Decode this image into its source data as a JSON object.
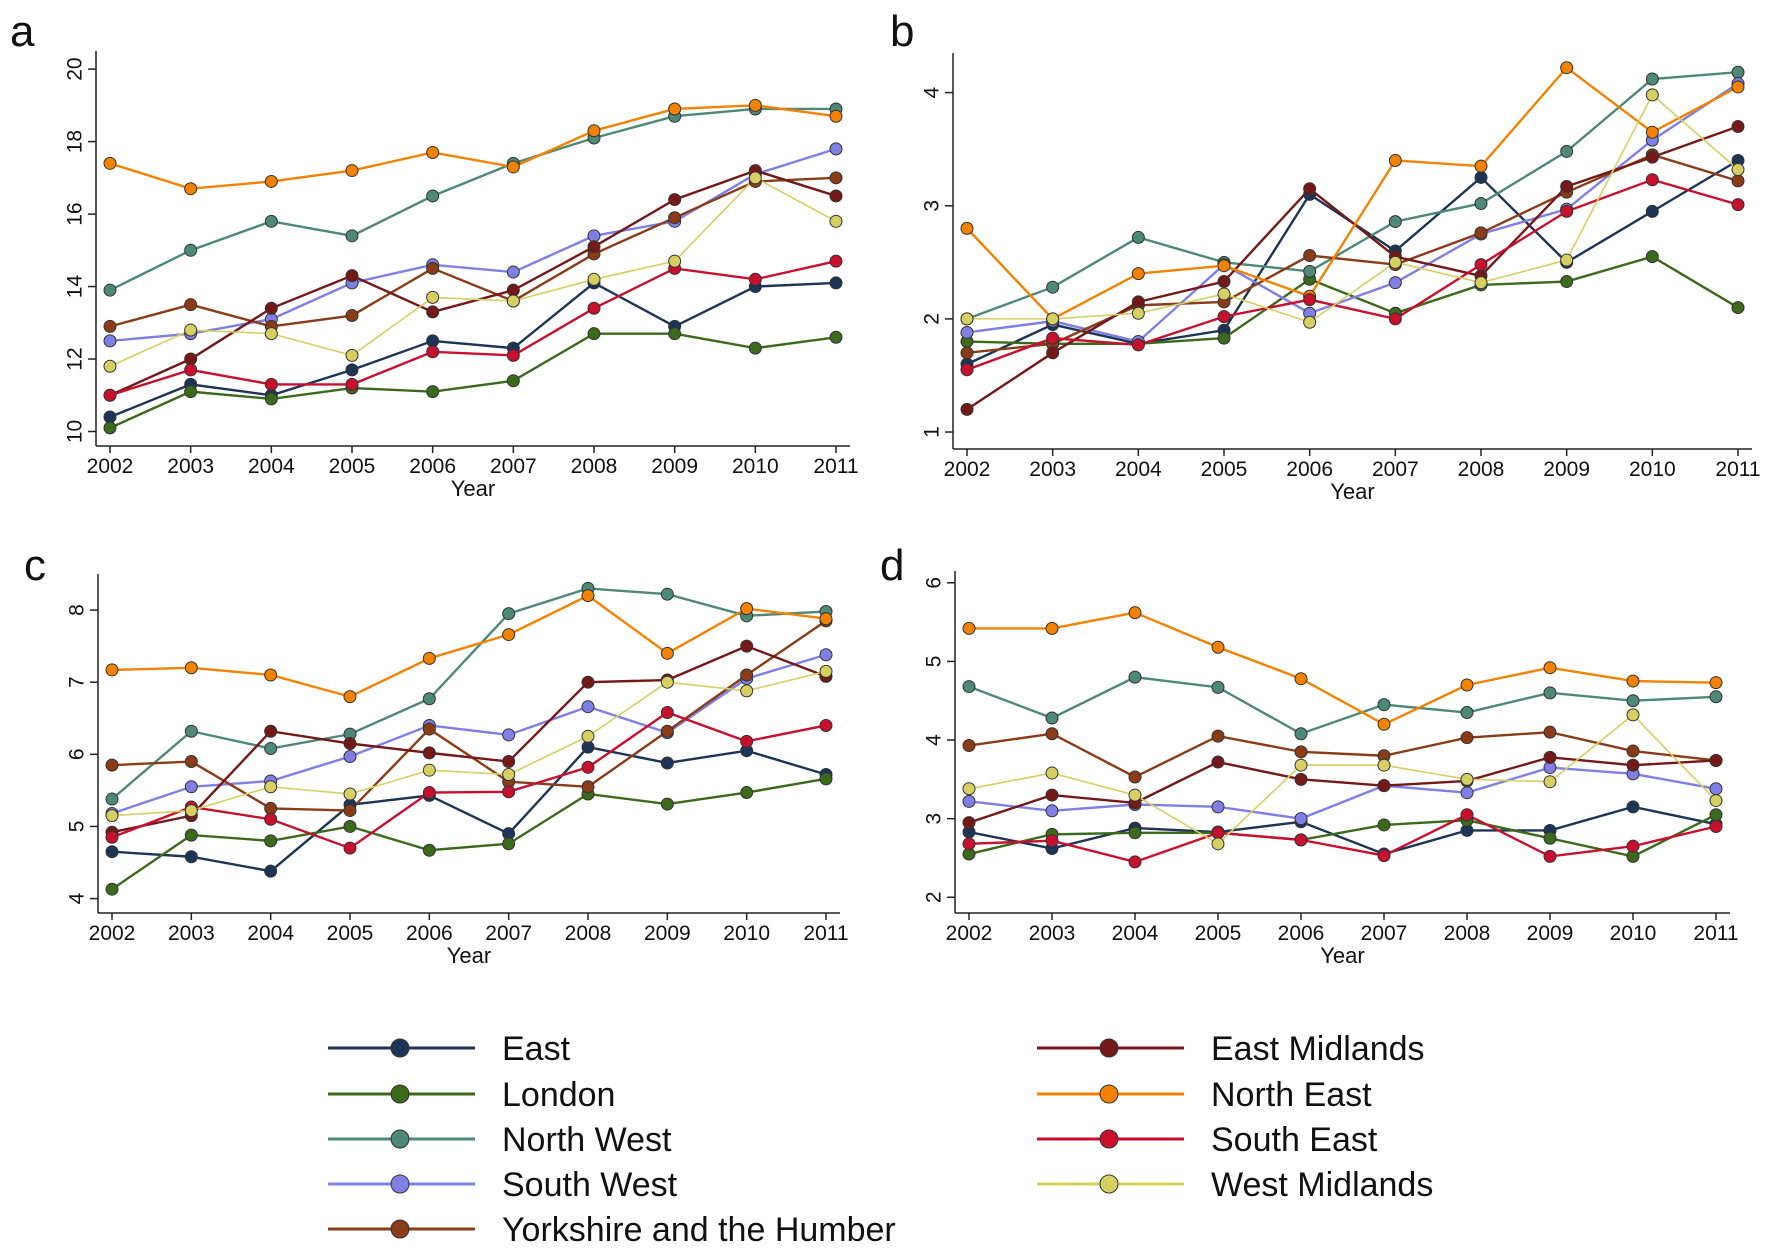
{
  "legend": {
    "series": [
      {
        "name": "East",
        "color": "#1c3557"
      },
      {
        "name": "London",
        "color": "#3c6a1c"
      },
      {
        "name": "North West",
        "color": "#4e8877"
      },
      {
        "name": "South West",
        "color": "#7f7fe6"
      },
      {
        "name": "Yorkshire and the Humber",
        "color": "#8a3c18"
      },
      {
        "name": "East Midlands",
        "color": "#741818"
      },
      {
        "name": "North East",
        "color": "#f28200"
      },
      {
        "name": "South East",
        "color": "#c8102e"
      },
      {
        "name": "West Midlands",
        "color": "#d6cf62"
      }
    ]
  },
  "chart_data": [
    {
      "type": "line",
      "label": "a",
      "xlabel": "Year",
      "categories": [
        "2002",
        "2003",
        "2004",
        "2005",
        "2006",
        "2007",
        "2008",
        "2009",
        "2010",
        "2011"
      ],
      "ylim": [
        9.6,
        20.5
      ],
      "yticks": [
        10,
        12,
        14,
        16,
        18,
        20
      ],
      "series": [
        {
          "values": [
            10.4,
            11.3,
            11.0,
            11.7,
            12.5,
            12.3,
            14.1,
            12.9,
            14.0,
            14.1
          ]
        },
        {
          "values": [
            10.1,
            11.1,
            10.9,
            11.2,
            11.1,
            11.4,
            12.7,
            12.7,
            12.3,
            12.6
          ]
        },
        {
          "values": [
            13.9,
            15.0,
            15.8,
            15.4,
            16.5,
            17.4,
            18.1,
            18.7,
            18.9,
            18.9
          ]
        },
        {
          "values": [
            12.5,
            12.7,
            13.1,
            14.1,
            14.6,
            14.4,
            15.4,
            15.8,
            17.1,
            17.8
          ]
        },
        {
          "values": [
            12.9,
            13.5,
            12.9,
            13.2,
            14.5,
            13.6,
            14.9,
            15.9,
            16.9,
            17.0
          ]
        },
        {
          "values": [
            11.0,
            12.0,
            13.4,
            14.3,
            13.3,
            13.9,
            15.1,
            16.4,
            17.2,
            16.5
          ]
        },
        {
          "values": [
            17.4,
            16.7,
            16.9,
            17.2,
            17.7,
            17.3,
            18.3,
            18.9,
            19.0,
            18.7
          ]
        },
        {
          "values": [
            11.0,
            11.7,
            11.3,
            11.3,
            12.2,
            12.1,
            13.4,
            14.5,
            14.2,
            14.7
          ]
        },
        {
          "values": [
            11.8,
            12.8,
            12.7,
            12.1,
            13.7,
            13.6,
            14.2,
            14.7,
            17.0,
            15.8
          ]
        }
      ]
    },
    {
      "type": "line",
      "label": "b",
      "xlabel": "Year",
      "categories": [
        "2002",
        "2003",
        "2004",
        "2005",
        "2006",
        "2007",
        "2008",
        "2009",
        "2010",
        "2011"
      ],
      "ylim": [
        0.85,
        4.35
      ],
      "yticks": [
        1,
        2,
        3,
        4
      ],
      "series": [
        {
          "values": [
            1.6,
            1.95,
            1.78,
            1.9,
            3.1,
            2.6,
            3.25,
            2.5,
            2.95,
            3.4
          ]
        },
        {
          "values": [
            1.8,
            1.78,
            1.78,
            1.83,
            2.35,
            2.05,
            2.3,
            2.33,
            2.55,
            2.1
          ]
        },
        {
          "values": [
            2.0,
            2.28,
            2.72,
            2.5,
            2.42,
            2.86,
            3.02,
            3.48,
            4.12,
            4.18
          ]
        },
        {
          "values": [
            1.88,
            1.98,
            1.8,
            2.48,
            2.05,
            2.32,
            2.75,
            2.97,
            3.58,
            4.08
          ]
        },
        {
          "values": [
            1.7,
            1.78,
            2.12,
            2.15,
            2.56,
            2.48,
            2.76,
            3.12,
            3.45,
            3.22
          ]
        },
        {
          "values": [
            1.2,
            1.7,
            2.15,
            2.33,
            3.15,
            2.55,
            2.38,
            3.17,
            3.43,
            3.7
          ]
        },
        {
          "values": [
            2.8,
            2.0,
            2.4,
            2.47,
            2.2,
            3.4,
            3.35,
            4.22,
            3.65,
            4.05
          ]
        },
        {
          "values": [
            1.55,
            1.83,
            1.77,
            2.02,
            2.17,
            2.0,
            2.48,
            2.95,
            3.23,
            3.01
          ]
        },
        {
          "values": [
            2.0,
            2.0,
            2.05,
            2.22,
            1.97,
            2.5,
            2.32,
            2.52,
            3.98,
            3.32
          ]
        }
      ]
    },
    {
      "type": "line",
      "label": "c",
      "xlabel": "Year",
      "categories": [
        "2002",
        "2003",
        "2004",
        "2005",
        "2006",
        "2007",
        "2008",
        "2009",
        "2010",
        "2011"
      ],
      "ylim": [
        3.8,
        8.5
      ],
      "yticks": [
        4,
        5,
        6,
        7,
        8
      ],
      "series": [
        {
          "values": [
            4.65,
            4.58,
            4.38,
            5.3,
            5.43,
            4.9,
            6.1,
            5.88,
            6.05,
            5.72
          ]
        },
        {
          "values": [
            4.13,
            4.88,
            4.8,
            5.0,
            4.67,
            4.76,
            5.45,
            5.31,
            5.47,
            5.66
          ]
        },
        {
          "values": [
            5.38,
            6.32,
            6.08,
            6.28,
            6.77,
            7.95,
            8.3,
            8.22,
            7.92,
            7.98
          ]
        },
        {
          "values": [
            5.18,
            5.55,
            5.63,
            5.97,
            6.4,
            6.27,
            6.66,
            6.3,
            7.05,
            7.38
          ]
        },
        {
          "values": [
            5.85,
            5.9,
            5.25,
            5.22,
            6.35,
            5.62,
            5.55,
            6.32,
            7.1,
            7.85
          ]
        },
        {
          "values": [
            4.92,
            5.15,
            6.32,
            6.15,
            6.02,
            5.9,
            7.0,
            7.03,
            7.5,
            7.08
          ]
        },
        {
          "values": [
            7.17,
            7.2,
            7.1,
            6.8,
            7.33,
            7.66,
            8.2,
            7.4,
            8.02,
            7.88
          ]
        },
        {
          "values": [
            4.85,
            5.27,
            5.1,
            4.7,
            5.47,
            5.48,
            5.82,
            6.58,
            6.18,
            6.4
          ]
        },
        {
          "values": [
            5.15,
            5.22,
            5.55,
            5.45,
            5.78,
            5.72,
            6.25,
            7.0,
            6.88,
            7.15
          ]
        }
      ]
    },
    {
      "type": "line",
      "label": "d",
      "xlabel": "Year",
      "categories": [
        "2002",
        "2003",
        "2004",
        "2005",
        "2006",
        "2007",
        "2008",
        "2009",
        "2010",
        "2011"
      ],
      "ylim": [
        1.8,
        6.15
      ],
      "yticks": [
        2,
        3,
        4,
        5,
        6
      ],
      "series": [
        {
          "values": [
            2.83,
            2.62,
            2.88,
            2.83,
            2.96,
            2.55,
            2.85,
            2.85,
            3.15,
            2.93
          ]
        },
        {
          "values": [
            2.55,
            2.8,
            2.82,
            2.82,
            2.73,
            2.92,
            2.98,
            2.75,
            2.52,
            3.05
          ]
        },
        {
          "values": [
            4.68,
            4.28,
            4.8,
            4.67,
            4.08,
            4.45,
            4.35,
            4.6,
            4.5,
            4.55
          ]
        },
        {
          "values": [
            3.22,
            3.1,
            3.18,
            3.15,
            3.0,
            3.42,
            3.33,
            3.65,
            3.57,
            3.38
          ]
        },
        {
          "values": [
            3.93,
            4.08,
            3.53,
            4.05,
            3.85,
            3.8,
            4.03,
            4.1,
            3.86,
            3.74
          ]
        },
        {
          "values": [
            2.95,
            3.3,
            3.2,
            3.72,
            3.5,
            3.42,
            3.48,
            3.78,
            3.68,
            3.74
          ]
        },
        {
          "values": [
            5.42,
            5.42,
            5.62,
            5.18,
            4.78,
            4.2,
            4.7,
            4.92,
            4.75,
            4.73
          ]
        },
        {
          "values": [
            2.68,
            2.72,
            2.45,
            2.82,
            2.73,
            2.53,
            3.05,
            2.52,
            2.65,
            2.9
          ]
        },
        {
          "values": [
            3.38,
            3.58,
            3.3,
            2.68,
            3.68,
            3.68,
            3.5,
            3.47,
            4.32,
            3.23
          ]
        }
      ]
    }
  ]
}
